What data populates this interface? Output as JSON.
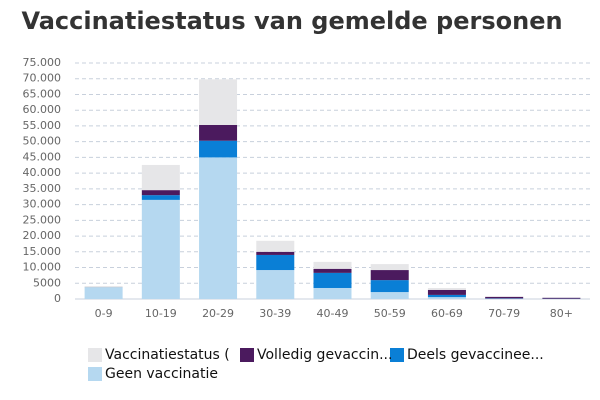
{
  "chart_data": {
    "type": "stacked_bar",
    "title": "Vaccinatiestatus van gemelde personen",
    "categories": [
      "0-9",
      "10-19",
      "20-29",
      "30-39",
      "40-49",
      "50-59",
      "60-69",
      "70-79",
      "80+"
    ],
    "series": [
      {
        "name": "Geen vaccinatie",
        "color": "#b5d8f0",
        "values": [
          3500,
          31500,
          45000,
          9200,
          3500,
          2200,
          600,
          100,
          50
        ]
      },
      {
        "name": "Deels gevaccinee...",
        "color": "#0a7fd6",
        "values": [
          100,
          1500,
          5300,
          4800,
          4800,
          3800,
          700,
          100,
          50
        ]
      },
      {
        "name": "Volledig gevaccin...",
        "color": "#4b1a5e",
        "values": [
          0,
          1600,
          5000,
          1000,
          1300,
          3200,
          1600,
          500,
          300
        ]
      },
      {
        "name": "Vaccinatiestatus (",
        "color": "#e6e6e8",
        "values": [
          500,
          8000,
          14500,
          3500,
          2200,
          1900,
          600,
          100,
          50
        ]
      }
    ],
    "ylim": [
      0,
      75000
    ],
    "yticks": [
      0,
      5000,
      {
        "value": 10000,
        "label": "10.000"
      },
      {
        "value": 15000,
        "label": "15.000"
      },
      {
        "value": 20000,
        "label": "20.000"
      },
      {
        "value": 25000,
        "label": "25.000"
      },
      {
        "value": 30000,
        "label": "30.000"
      },
      {
        "value": 35000,
        "label": "35.000"
      },
      {
        "value": 40000,
        "label": "40.000"
      },
      {
        "value": 45000,
        "label": "45.000"
      },
      {
        "value": 50000,
        "label": "50.000"
      },
      {
        "value": 55000,
        "label": "55.000"
      },
      {
        "value": 60000,
        "label": "60.000"
      },
      {
        "value": 65000,
        "label": "65.000"
      },
      {
        "value": 70000,
        "label": "70.000"
      },
      {
        "value": 75000,
        "label": "75.000"
      }
    ],
    "grid": true
  }
}
